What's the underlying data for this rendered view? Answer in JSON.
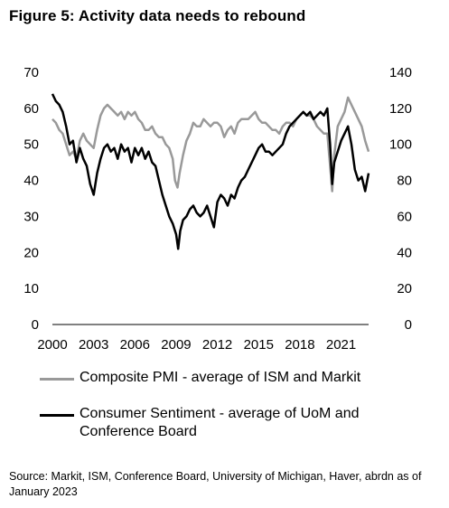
{
  "title": "Figure 5: Activity data needs to rebound",
  "source": "Source: Markit, ISM, Conference Board, University of Michigan, Haver, abrdn as of January 2023",
  "chart_data": {
    "type": "line",
    "x_range": [
      2000,
      2023
    ],
    "x_ticks": [
      "2000",
      "2003",
      "2006",
      "2009",
      "2012",
      "2015",
      "2018",
      "2021"
    ],
    "y_left": {
      "range": [
        0,
        70
      ],
      "ticks": [
        "0",
        "10",
        "20",
        "30",
        "40",
        "50",
        "60",
        "70"
      ]
    },
    "y_right": {
      "range": [
        0,
        140
      ],
      "ticks": [
        "0",
        "20",
        "40",
        "60",
        "80",
        "100",
        "120",
        "140"
      ]
    },
    "series": [
      {
        "name": "Composite PMI - average of ISM and Markit",
        "color": "#999999",
        "axis": "left",
        "x": [
          2000.0,
          2000.25,
          2000.5,
          2000.75,
          2001.0,
          2001.25,
          2001.5,
          2001.75,
          2002.0,
          2002.25,
          2002.5,
          2002.75,
          2003.0,
          2003.25,
          2003.5,
          2003.75,
          2004.0,
          2004.25,
          2004.5,
          2004.75,
          2005.0,
          2005.25,
          2005.5,
          2005.75,
          2006.0,
          2006.25,
          2006.5,
          2006.75,
          2007.0,
          2007.25,
          2007.5,
          2007.75,
          2008.0,
          2008.25,
          2008.5,
          2008.75,
          2008.92,
          2009.1,
          2009.25,
          2009.5,
          2009.75,
          2010.0,
          2010.25,
          2010.5,
          2010.75,
          2011.0,
          2011.25,
          2011.5,
          2011.75,
          2012.0,
          2012.25,
          2012.5,
          2012.75,
          2013.0,
          2013.25,
          2013.5,
          2013.75,
          2014.0,
          2014.25,
          2014.5,
          2014.75,
          2015.0,
          2015.25,
          2015.5,
          2015.75,
          2016.0,
          2016.25,
          2016.5,
          2016.75,
          2017.0,
          2017.25,
          2017.5,
          2017.75,
          2018.0,
          2018.25,
          2018.5,
          2018.75,
          2019.0,
          2019.25,
          2019.5,
          2019.75,
          2020.0,
          2020.2,
          2020.35,
          2020.5,
          2020.75,
          2021.0,
          2021.25,
          2021.5,
          2021.75,
          2022.0,
          2022.25,
          2022.5,
          2022.75,
          2023.0
        ],
        "values": [
          57,
          56,
          54,
          53,
          50,
          47,
          48,
          46,
          51,
          53,
          51,
          50,
          49,
          54,
          58,
          60,
          61,
          60,
          59,
          58,
          59,
          57,
          59,
          58,
          59,
          57,
          56,
          54,
          54,
          55,
          53,
          52,
          52,
          50,
          49,
          46,
          40,
          38,
          42,
          47,
          51,
          53,
          56,
          55,
          55,
          57,
          56,
          55,
          56,
          56,
          55,
          52,
          54,
          55,
          53,
          56,
          57,
          57,
          57,
          58,
          59,
          57,
          56,
          56,
          55,
          54,
          54,
          53,
          55,
          56,
          56,
          55,
          57,
          58,
          59,
          58,
          58,
          57,
          55,
          54,
          53,
          53,
          44,
          37,
          47,
          55,
          57,
          59,
          63,
          61,
          59,
          57,
          55,
          51,
          48
        ]
      },
      {
        "name": "Consumer Sentiment - average of UoM and Conference Board",
        "color": "#000000",
        "axis": "right",
        "x": [
          2000.0,
          2000.25,
          2000.5,
          2000.75,
          2001.0,
          2001.25,
          2001.5,
          2001.75,
          2002.0,
          2002.25,
          2002.5,
          2002.75,
          2003.0,
          2003.25,
          2003.5,
          2003.75,
          2004.0,
          2004.25,
          2004.5,
          2004.75,
          2005.0,
          2005.25,
          2005.5,
          2005.75,
          2006.0,
          2006.25,
          2006.5,
          2006.75,
          2007.0,
          2007.25,
          2007.5,
          2007.75,
          2008.0,
          2008.25,
          2008.5,
          2008.75,
          2009.0,
          2009.15,
          2009.3,
          2009.5,
          2009.75,
          2010.0,
          2010.25,
          2010.5,
          2010.75,
          2011.0,
          2011.25,
          2011.5,
          2011.75,
          2012.0,
          2012.25,
          2012.5,
          2012.75,
          2013.0,
          2013.25,
          2013.5,
          2013.75,
          2014.0,
          2014.25,
          2014.5,
          2014.75,
          2015.0,
          2015.25,
          2015.5,
          2015.75,
          2016.0,
          2016.25,
          2016.5,
          2016.75,
          2017.0,
          2017.25,
          2017.5,
          2017.75,
          2018.0,
          2018.25,
          2018.5,
          2018.75,
          2019.0,
          2019.25,
          2019.5,
          2019.75,
          2020.0,
          2020.2,
          2020.35,
          2020.5,
          2020.75,
          2021.0,
          2021.25,
          2021.5,
          2021.75,
          2022.0,
          2022.25,
          2022.5,
          2022.75,
          2023.0
        ],
        "values": [
          128,
          124,
          122,
          118,
          110,
          100,
          102,
          90,
          98,
          92,
          88,
          78,
          72,
          84,
          92,
          98,
          100,
          96,
          98,
          92,
          100,
          96,
          98,
          90,
          98,
          94,
          98,
          92,
          96,
          90,
          88,
          80,
          72,
          66,
          60,
          56,
          50,
          42,
          52,
          58,
          60,
          64,
          66,
          62,
          60,
          62,
          66,
          60,
          54,
          68,
          72,
          70,
          66,
          72,
          70,
          76,
          80,
          82,
          86,
          90,
          94,
          98,
          100,
          96,
          96,
          94,
          96,
          98,
          100,
          106,
          110,
          112,
          114,
          116,
          118,
          116,
          118,
          114,
          116,
          118,
          116,
          120,
          100,
          78,
          90,
          96,
          102,
          106,
          110,
          100,
          86,
          80,
          82,
          74,
          84
        ]
      }
    ]
  },
  "legend": [
    {
      "label": "Composite PMI - average of ISM and Markit",
      "color": "#999999"
    },
    {
      "label": "Consumer Sentiment - average of UoM and Conference Board",
      "color": "#000000"
    }
  ]
}
